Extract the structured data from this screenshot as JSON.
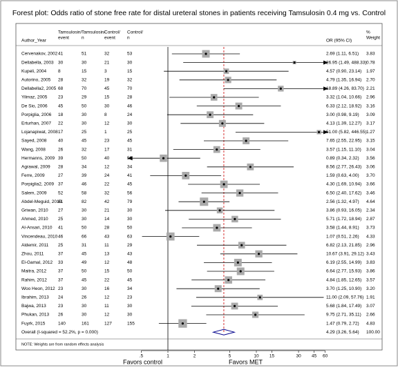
{
  "chart_data": {
    "type": "forest",
    "title": "Forest plot: Odds ratio of stone free rate for distal ureteral stones in patients receiving Tamsulosin 0.4 mg vs. Control",
    "columns": {
      "author": "Author_Year",
      "t_event": [
        "Tamsulosin/",
        "event"
      ],
      "t_n": [
        "Tamsulosin/",
        "n"
      ],
      "c_event": [
        "Control/",
        "event"
      ],
      "c_n": [
        "Control/",
        "n"
      ],
      "or": "OR (95% CI)",
      "weight": [
        "%",
        "Weight"
      ]
    },
    "studies": [
      {
        "name": "Cervenakov, 2002",
        "t_event": 41,
        "t_n": 51,
        "c_event": 32,
        "c_n": 53,
        "or": 2.69,
        "lo": 1.11,
        "hi": 6.51,
        "label": "2.69 (1.11, 6.51)",
        "weight": 3.83,
        "weight_label": "3.83"
      },
      {
        "name": "Dellabella, 2003",
        "t_event": 30,
        "t_n": 30,
        "c_event": 21,
        "c_n": 30,
        "or": 26.95,
        "lo": 1.49,
        "hi": 488.33,
        "label": "26.95 (1.49, 488.33)",
        "weight": 0.78,
        "weight_label": "0.78"
      },
      {
        "name": "Kupeli, 2004",
        "t_event": 8,
        "t_n": 15,
        "c_event": 3,
        "c_n": 15,
        "or": 4.57,
        "lo": 0.9,
        "hi": 23.14,
        "label": "4.57 (0.90, 23.14)",
        "weight": 1.97,
        "weight_label": "1.97"
      },
      {
        "name": "Autorino, 2005",
        "t_event": 28,
        "t_n": 32,
        "c_event": 19,
        "c_n": 32,
        "or": 4.79,
        "lo": 1.35,
        "hi": 16.94,
        "label": "4.79 (1.35, 16.94)",
        "weight": 2.7,
        "weight_label": "2.70"
      },
      {
        "name": "Dellabella2, 2005",
        "t_event": 68,
        "t_n": 70,
        "c_event": 45,
        "c_n": 70,
        "or": 18.89,
        "lo": 4.26,
        "hi": 83.7,
        "label": "18.89 (4.26, 83.70)",
        "weight": 2.21,
        "weight_label": "2.21"
      },
      {
        "name": "Yilmaz, 2005",
        "t_event": 23,
        "t_n": 29,
        "c_event": 15,
        "c_n": 28,
        "or": 3.32,
        "lo": 1.04,
        "hi": 10.66,
        "label": "3.32 (1.04, 10.66)",
        "weight": 2.96,
        "weight_label": "2.96"
      },
      {
        "name": "De Sio, 2006",
        "t_event": 45,
        "t_n": 50,
        "c_event": 30,
        "c_n": 46,
        "or": 6.33,
        "lo": 2.12,
        "hi": 18.92,
        "label": "6.33 (2.12, 18.92)",
        "weight": 3.16,
        "weight_label": "3.16"
      },
      {
        "name": "Porpiglia, 2006",
        "t_event": 18,
        "t_n": 30,
        "c_event": 8,
        "c_n": 24,
        "or": 3.0,
        "lo": 0.98,
        "hi": 9.19,
        "label": "3.00 (0.98, 9.19)",
        "weight": 3.09,
        "weight_label": "3.09"
      },
      {
        "name": "Erturhan, 2007",
        "t_event": 22,
        "t_n": 30,
        "c_event": 12,
        "c_n": 30,
        "or": 4.13,
        "lo": 1.39,
        "hi": 12.27,
        "label": "4.13 (1.39, 12.27)",
        "weight": 3.17,
        "weight_label": "3.17"
      },
      {
        "name": "Lojanapiwat, 2008",
        "t_event": 17,
        "t_n": 25,
        "c_event": 1,
        "c_n": 25,
        "or": 51.0,
        "lo": 5.82,
        "hi": 446.55,
        "label": "51.00 (5.82, 446.55)",
        "weight": 1.27,
        "weight_label": "1.27"
      },
      {
        "name": "Sayed, 2008",
        "t_event": 40,
        "t_n": 45,
        "c_event": 23,
        "c_n": 45,
        "or": 7.65,
        "lo": 2.55,
        "hi": 22.95,
        "label": "7.65 (2.55, 22.95)",
        "weight": 3.15,
        "weight_label": "3.15"
      },
      {
        "name": "Wang, 2008",
        "t_event": 26,
        "t_n": 32,
        "c_event": 17,
        "c_n": 31,
        "or": 3.57,
        "lo": 1.15,
        "hi": 11.1,
        "label": "3.57 (1.15, 11.10)",
        "weight": 3.04,
        "weight_label": "3.04"
      },
      {
        "name": "Hermanns, 2009",
        "t_event": 39,
        "t_n": 50,
        "c_event": 40,
        "c_n": 50,
        "or": 0.89,
        "lo": 0.34,
        "hi": 2.32,
        "label": "0.89 (0.34, 2.32)",
        "weight": 3.56,
        "weight_label": "3.56"
      },
      {
        "name": "Agrawal, 2009",
        "t_event": 28,
        "t_n": 34,
        "c_event": 12,
        "c_n": 34,
        "or": 8.56,
        "lo": 2.77,
        "hi": 26.43,
        "label": "8.56 (2.77, 26.43)",
        "weight": 3.06,
        "weight_label": "3.06"
      },
      {
        "name": "Ferre, 2009",
        "t_event": 27,
        "t_n": 39,
        "c_event": 24,
        "c_n": 41,
        "or": 1.59,
        "lo": 0.63,
        "hi": 4.0,
        "label": "1.59 (0.63, 4.00)",
        "weight": 3.7,
        "weight_label": "3.70"
      },
      {
        "name": "Porpiglia2, 2009",
        "t_event": 37,
        "t_n": 46,
        "c_event": 22,
        "c_n": 45,
        "or": 4.3,
        "lo": 1.69,
        "hi": 10.94,
        "label": "4.30 (1.69, 10.94)",
        "weight": 3.66,
        "weight_label": "3.66"
      },
      {
        "name": "Salem, 2009",
        "t_event": 52,
        "t_n": 58,
        "c_event": 32,
        "c_n": 56,
        "or": 6.5,
        "lo": 2.4,
        "hi": 17.62,
        "label": "6.50 (2.40, 17.62)",
        "weight": 3.46,
        "weight_label": "3.46"
      },
      {
        "name": "Abdel-Meguid, 2010",
        "t_event": 61,
        "t_n": 82,
        "c_event": 42,
        "c_n": 79,
        "or": 2.56,
        "lo": 1.32,
        "hi": 4.97,
        "label": "2.56 (1.32, 4.97)",
        "weight": 4.64,
        "weight_label": "4.64"
      },
      {
        "name": "Griwan, 2010",
        "t_event": 27,
        "t_n": 30,
        "c_event": 21,
        "c_n": 30,
        "or": 3.86,
        "lo": 0.93,
        "hi": 16.05,
        "label": "3.86 (0.93, 16.05)",
        "weight": 2.34,
        "weight_label": "2.34"
      },
      {
        "name": "Ahmed, 2010",
        "t_event": 25,
        "t_n": 30,
        "c_event": 14,
        "c_n": 30,
        "or": 5.71,
        "lo": 1.72,
        "hi": 18.94,
        "label": "5.71 (1.72, 18.94)",
        "weight": 2.87,
        "weight_label": "2.87"
      },
      {
        "name": "Al-Ansari, 2010",
        "t_event": 41,
        "t_n": 50,
        "c_event": 28,
        "c_n": 50,
        "or": 3.58,
        "lo": 1.44,
        "hi": 8.91,
        "label": "3.58 (1.44, 8.91)",
        "weight": 3.73,
        "weight_label": "3.73"
      },
      {
        "name": "Vincendeau, 2010",
        "t_event": 46,
        "t_n": 66,
        "c_event": 43,
        "c_n": 63,
        "or": 1.07,
        "lo": 0.51,
        "hi": 2.26,
        "label": "1.07 (0.51, 2.26)",
        "weight": 4.33,
        "weight_label": "4.33"
      },
      {
        "name": "Aldemir, 2011",
        "t_event": 25,
        "t_n": 31,
        "c_event": 11,
        "c_n": 29,
        "or": 6.82,
        "lo": 2.13,
        "hi": 21.85,
        "label": "6.82 (2.13, 21.85)",
        "weight": 2.96,
        "weight_label": "2.96"
      },
      {
        "name": "Zhou, 2011",
        "t_event": 37,
        "t_n": 45,
        "c_event": 13,
        "c_n": 43,
        "or": 10.67,
        "lo": 3.91,
        "hi": 29.12,
        "label": "10.67 (3.91, 29.12)",
        "weight": 3.43,
        "weight_label": "3.43"
      },
      {
        "name": "El-Gamal, 2012",
        "t_event": 33,
        "t_n": 49,
        "c_event": 12,
        "c_n": 48,
        "or": 6.19,
        "lo": 2.55,
        "hi": 14.99,
        "label": "6.19 (2.55, 14.99)",
        "weight": 3.83,
        "weight_label": "3.83"
      },
      {
        "name": "Maitra, 2012",
        "t_event": 37,
        "t_n": 50,
        "c_event": 15,
        "c_n": 50,
        "or": 6.64,
        "lo": 2.77,
        "hi": 15.93,
        "label": "6.64 (2.77, 15.93)",
        "weight": 3.86,
        "weight_label": "3.86"
      },
      {
        "name": "Rahim, 2012",
        "t_event": 37,
        "t_n": 45,
        "c_event": 22,
        "c_n": 45,
        "or": 4.84,
        "lo": 1.85,
        "hi": 12.65,
        "label": "4.84 (1.85, 12.65)",
        "weight": 3.57,
        "weight_label": "3.57"
      },
      {
        "name": "Woo Heon, 2012",
        "t_event": 23,
        "t_n": 30,
        "c_event": 16,
        "c_n": 34,
        "or": 3.7,
        "lo": 1.25,
        "hi": 10.9,
        "label": "3.70 (1.25, 10.90)",
        "weight": 3.2,
        "weight_label": "3.20"
      },
      {
        "name": "Ibrahim, 2013",
        "t_event": 24,
        "t_n": 26,
        "c_event": 12,
        "c_n": 23,
        "or": 11.0,
        "lo": 2.09,
        "hi": 57.76,
        "label": "11.00 (2.09, 57.76)",
        "weight": 1.91,
        "weight_label": "1.91"
      },
      {
        "name": "Bajwa, 2013",
        "t_event": 23,
        "t_n": 30,
        "c_event": 11,
        "c_n": 30,
        "or": 5.68,
        "lo": 1.84,
        "hi": 17.49,
        "label": "5.68 (1.84, 17.49)",
        "weight": 3.07,
        "weight_label": "3.07"
      },
      {
        "name": "Phukan, 2013",
        "t_event": 26,
        "t_n": 30,
        "c_event": 12,
        "c_n": 30,
        "or": 9.75,
        "lo": 2.71,
        "hi": 35.11,
        "label": "9.75 (2.71, 35.11)",
        "weight": 2.66,
        "weight_label": "2.66"
      },
      {
        "name": "Fuyrk, 2015",
        "t_event": 140,
        "t_n": 161,
        "c_event": 127,
        "c_n": 155,
        "or": 1.47,
        "lo": 0.79,
        "hi": 2.72,
        "label": "1.47 (0.79, 2.72)",
        "weight": 4.83,
        "weight_label": "4.83"
      }
    ],
    "overall": {
      "name": "Overall  (I-squared = 52.2%, p = 0.000)",
      "or": 4.29,
      "lo": 3.26,
      "hi": 5.64,
      "label": "4.29 (3.26, 5.64)",
      "weight": 100,
      "weight_label": "100.00"
    },
    "note": "NOTE: Weights are from random effects analysis",
    "xlabel_left": "Favors control",
    "xlabel_right": "Favors MET",
    "xscale": "log",
    "xlim": [
      0.35,
      65
    ],
    "xticks": [
      {
        "value": 0.5,
        "label": ".5"
      },
      1,
      2,
      5,
      10,
      15,
      30,
      45,
      60
    ],
    "null_value": 1,
    "box_color": "#aaaaaa",
    "ci_color": "#000000",
    "diamond_color": "#00008b",
    "ref_color": "#cc0000"
  }
}
